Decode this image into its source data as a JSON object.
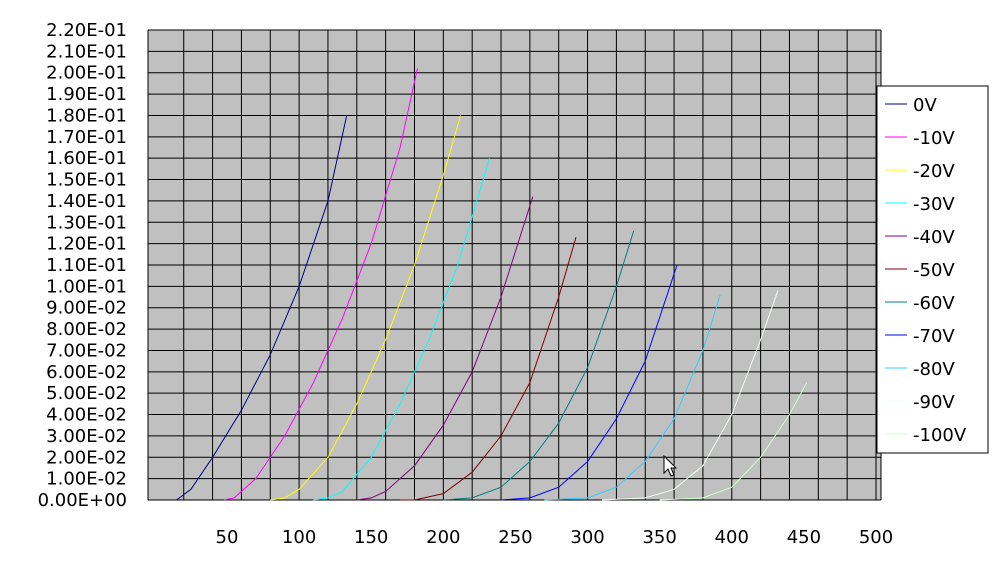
{
  "chart_data": {
    "type": "line",
    "title": "",
    "xlabel": "",
    "ylabel": "",
    "xlim": [
      0,
      500
    ],
    "ylim": [
      0,
      0.22
    ],
    "x_ticks": [
      50,
      100,
      150,
      200,
      250,
      300,
      350,
      400,
      450,
      500
    ],
    "x_tick_labels": [
      "50",
      "100",
      "150",
      "200",
      "250",
      "300",
      "350",
      "400",
      "450",
      "500"
    ],
    "y_ticks": [
      0,
      0.01,
      0.02,
      0.03,
      0.04,
      0.05,
      0.06,
      0.07,
      0.08,
      0.09,
      0.1,
      0.11,
      0.12,
      0.13,
      0.14,
      0.15,
      0.16,
      0.17,
      0.18,
      0.19,
      0.2,
      0.21,
      0.22
    ],
    "y_tick_labels": [
      "0.00E+00",
      "1.00E-02",
      "2.00E-02",
      "3.00E-02",
      "4.00E-02",
      "5.00E-02",
      "6.00E-02",
      "7.00E-02",
      "8.00E-02",
      "9.00E-02",
      "1.00E-01",
      "1.10E-01",
      "1.20E-01",
      "1.30E-01",
      "1.40E-01",
      "1.50E-01",
      "1.60E-01",
      "1.70E-01",
      "1.80E-01",
      "1.90E-01",
      "2.00E-01",
      "2.10E-01",
      "2.20E-01"
    ],
    "grid": true,
    "legend_position": "right",
    "background_color": "#c0c0c0",
    "series": [
      {
        "name": "0V",
        "color": "#000080",
        "x": [
          15,
          25,
          40,
          60,
          80,
          100,
          120,
          133
        ],
        "y": [
          0,
          0.005,
          0.02,
          0.042,
          0.068,
          0.1,
          0.14,
          0.18
        ]
      },
      {
        "name": "-10V",
        "color": "#ff00ff",
        "x": [
          48,
          55,
          70,
          90,
          110,
          130,
          150,
          170,
          182
        ],
        "y": [
          0,
          0.001,
          0.01,
          0.03,
          0.055,
          0.085,
          0.12,
          0.165,
          0.202
        ]
      },
      {
        "name": "-20V",
        "color": "#ffff00",
        "x": [
          80,
          90,
          100,
          120,
          140,
          160,
          180,
          200,
          212
        ],
        "y": [
          0,
          0.001,
          0.005,
          0.02,
          0.045,
          0.075,
          0.11,
          0.152,
          0.18
        ]
      },
      {
        "name": "-30V",
        "color": "#00ffff",
        "x": [
          110,
          120,
          130,
          150,
          170,
          190,
          210,
          232
        ],
        "y": [
          0,
          0.001,
          0.004,
          0.02,
          0.045,
          0.075,
          0.11,
          0.16
        ]
      },
      {
        "name": "-40V",
        "color": "#800080",
        "x": [
          140,
          150,
          160,
          180,
          200,
          220,
          240,
          262
        ],
        "y": [
          0,
          0.001,
          0.004,
          0.016,
          0.035,
          0.06,
          0.095,
          0.142
        ]
      },
      {
        "name": "-50V",
        "color": "#800000",
        "x": [
          170,
          180,
          200,
          220,
          240,
          260,
          280,
          292
        ],
        "y": [
          0,
          0,
          0.003,
          0.013,
          0.03,
          0.055,
          0.095,
          0.123
        ]
      },
      {
        "name": "-60V",
        "color": "#008080",
        "x": [
          200,
          220,
          240,
          260,
          280,
          300,
          320,
          332
        ],
        "y": [
          0,
          0.001,
          0.006,
          0.018,
          0.036,
          0.062,
          0.1,
          0.126
        ]
      },
      {
        "name": "-70V",
        "color": "#0000ff",
        "x": [
          240,
          260,
          280,
          300,
          320,
          340,
          362
        ],
        "y": [
          0,
          0.001,
          0.006,
          0.018,
          0.038,
          0.065,
          0.11
        ]
      },
      {
        "name": "-80V",
        "color": "#33ccff",
        "x": [
          270,
          300,
          320,
          340,
          360,
          380,
          392
        ],
        "y": [
          0,
          0.001,
          0.006,
          0.018,
          0.038,
          0.07,
          0.096
        ]
      },
      {
        "name": "-90V",
        "color": "#f0fff0",
        "x": [
          310,
          340,
          360,
          380,
          400,
          420,
          432
        ],
        "y": [
          0,
          0.001,
          0.005,
          0.016,
          0.04,
          0.075,
          0.098
        ]
      },
      {
        "name": "-100V",
        "color": "#ccffcc",
        "x": [
          350,
          380,
          400,
          420,
          440,
          452
        ],
        "y": [
          0,
          0.001,
          0.006,
          0.02,
          0.04,
          0.055
        ]
      }
    ]
  }
}
